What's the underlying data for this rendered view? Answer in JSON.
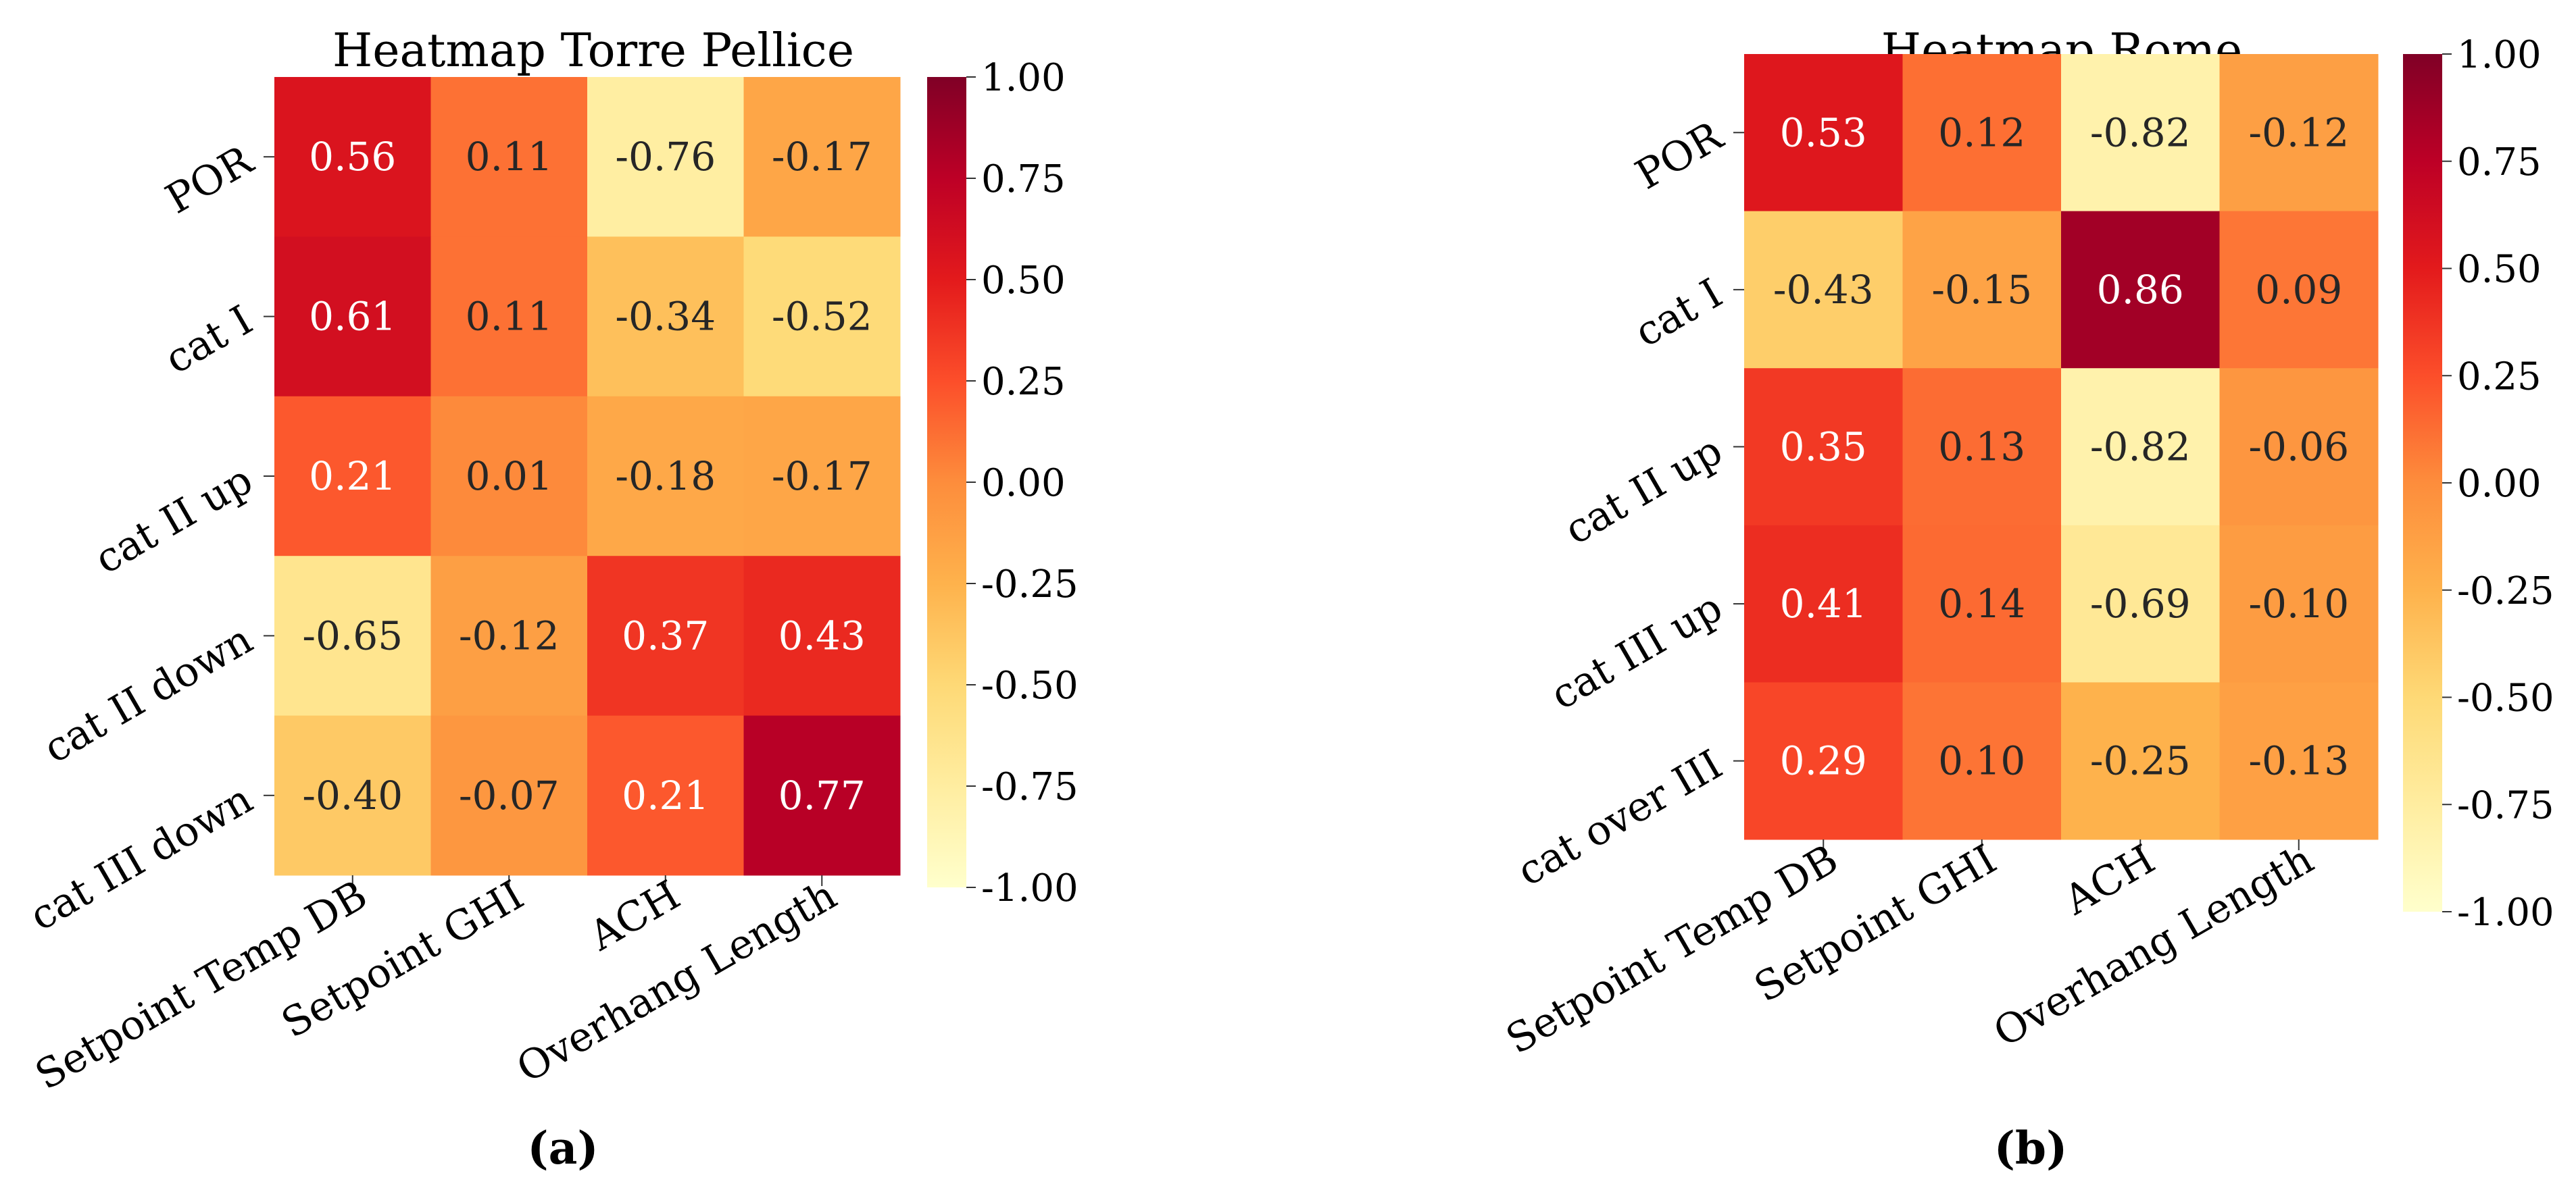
{
  "chart_data": [
    {
      "type": "heatmap",
      "panel_label": "(a)",
      "title": "Heatmap Torre Pellice",
      "rows": [
        "POR",
        "cat I",
        "cat II up",
        "cat II down",
        "cat III down"
      ],
      "columns": [
        "Setpoint Temp DB",
        "Setpoint GHI",
        "ACH",
        "Overhang Length"
      ],
      "values": [
        [
          0.56,
          0.11,
          -0.76,
          -0.17
        ],
        [
          0.61,
          0.11,
          -0.34,
          -0.52
        ],
        [
          0.21,
          0.01,
          -0.18,
          -0.17
        ],
        [
          -0.65,
          -0.12,
          0.37,
          0.43
        ],
        [
          -0.4,
          -0.07,
          0.21,
          0.77
        ]
      ],
      "value_labels": [
        [
          "0.56",
          "0.11",
          "-0.76",
          "-0.17"
        ],
        [
          "0.61",
          "0.11",
          "-0.34",
          "-0.52"
        ],
        [
          "0.21",
          "0.01",
          "-0.18",
          "-0.17"
        ],
        [
          "-0.65",
          "-0.12",
          "0.37",
          "0.43"
        ],
        [
          "-0.40",
          "-0.07",
          "0.21",
          "0.77"
        ]
      ],
      "colorbar": {
        "range": [
          -1.0,
          1.0
        ],
        "ticks": [
          1.0,
          0.75,
          0.5,
          0.25,
          0.0,
          -0.25,
          -0.5,
          -0.75,
          -1.0
        ],
        "tick_labels": [
          "1.00",
          "0.75",
          "0.50",
          "0.25",
          "0.00",
          "-0.25",
          "-0.50",
          "-0.75",
          "-1.00"
        ],
        "colormap": "YlOrRd"
      }
    },
    {
      "type": "heatmap",
      "panel_label": "(b)",
      "title": "Heatmap Rome",
      "rows": [
        "POR",
        "cat I",
        "cat II up",
        "cat III up",
        "cat over III"
      ],
      "columns": [
        "Setpoint Temp DB",
        "Setpoint GHI",
        "ACH",
        "Overhang Length"
      ],
      "values": [
        [
          0.53,
          0.12,
          -0.82,
          -0.12
        ],
        [
          -0.43,
          -0.15,
          0.86,
          0.09
        ],
        [
          0.35,
          0.13,
          -0.82,
          -0.06
        ],
        [
          0.41,
          0.14,
          -0.69,
          -0.1
        ],
        [
          0.29,
          0.1,
          -0.25,
          -0.13
        ]
      ],
      "value_labels": [
        [
          "0.53",
          "0.12",
          "-0.82",
          "-0.12"
        ],
        [
          "-0.43",
          "-0.15",
          "0.86",
          "0.09"
        ],
        [
          "0.35",
          "0.13",
          "-0.82",
          "-0.06"
        ],
        [
          "0.41",
          "0.14",
          "-0.69",
          "-0.10"
        ],
        [
          "0.29",
          "0.10",
          "-0.25",
          "-0.13"
        ]
      ],
      "colorbar": {
        "range": [
          -1.0,
          1.0
        ],
        "ticks": [
          1.0,
          0.75,
          0.5,
          0.25,
          0.0,
          -0.25,
          -0.5,
          -0.75,
          -1.0
        ],
        "tick_labels": [
          "1.00",
          "0.75",
          "0.50",
          "0.25",
          "0.00",
          "-0.25",
          "-0.50",
          "-0.75",
          "-1.00"
        ],
        "colormap": "YlOrRd"
      }
    }
  ]
}
